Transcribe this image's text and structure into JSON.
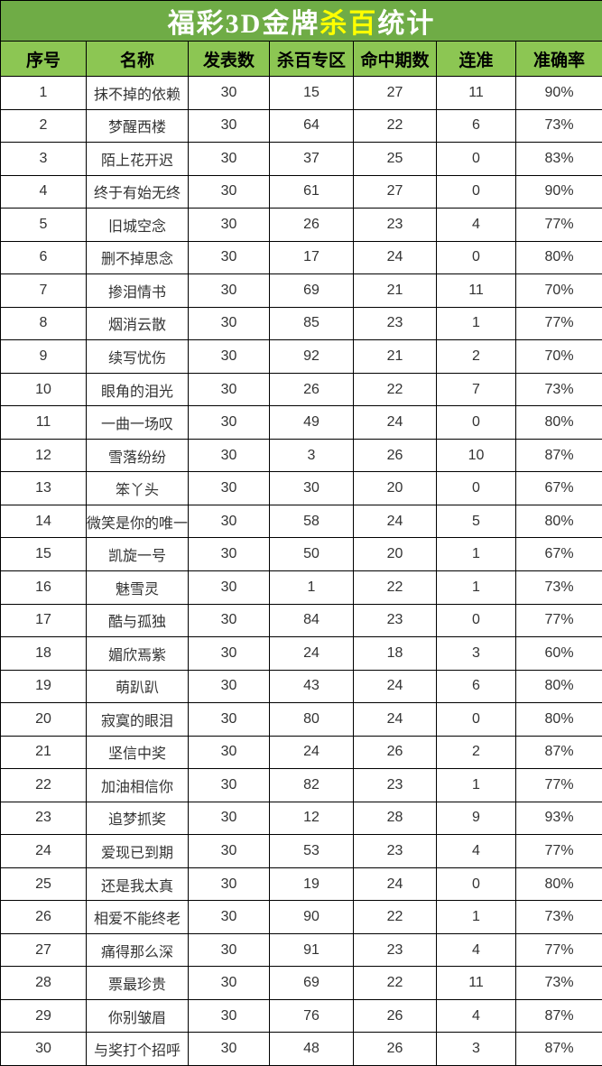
{
  "title": {
    "prefix": "福彩3D金牌",
    "highlight": "杀百",
    "suffix": "统计"
  },
  "colors": {
    "title_bg": "#6FAC46",
    "header_bg": "#8CC653",
    "title_text": "#FFFFFF",
    "title_highlight": "#FFFF00",
    "border": "#000000",
    "cell_text": "#333333"
  },
  "chart_data": {
    "type": "table",
    "title": "福彩3D金牌杀百统计",
    "columns": [
      "序号",
      "名称",
      "发表数",
      "杀百专区",
      "命中期数",
      "连准",
      "准确率"
    ],
    "rows": [
      [
        1,
        "抹不掉的依赖",
        30,
        15,
        27,
        11,
        "90%"
      ],
      [
        2,
        "梦醒西楼",
        30,
        64,
        22,
        6,
        "73%"
      ],
      [
        3,
        "陌上花开迟",
        30,
        37,
        25,
        0,
        "83%"
      ],
      [
        4,
        "终于有始无终",
        30,
        61,
        27,
        0,
        "90%"
      ],
      [
        5,
        "旧城空念",
        30,
        26,
        23,
        4,
        "77%"
      ],
      [
        6,
        "删不掉思念",
        30,
        17,
        24,
        0,
        "80%"
      ],
      [
        7,
        "掺泪情书",
        30,
        69,
        21,
        11,
        "70%"
      ],
      [
        8,
        "烟消云散",
        30,
        85,
        23,
        1,
        "77%"
      ],
      [
        9,
        "续写忧伤",
        30,
        92,
        21,
        2,
        "70%"
      ],
      [
        10,
        "眼角的泪光",
        30,
        26,
        22,
        7,
        "73%"
      ],
      [
        11,
        "一曲一场叹",
        30,
        49,
        24,
        0,
        "80%"
      ],
      [
        12,
        "雪落纷纷",
        30,
        3,
        26,
        10,
        "87%"
      ],
      [
        13,
        "笨丫头",
        30,
        30,
        20,
        0,
        "67%"
      ],
      [
        14,
        "微笑是你的唯一",
        30,
        58,
        24,
        5,
        "80%"
      ],
      [
        15,
        "凯旋一号",
        30,
        50,
        20,
        1,
        "67%"
      ],
      [
        16,
        "魅雪灵",
        30,
        1,
        22,
        1,
        "73%"
      ],
      [
        17,
        "酷与孤独",
        30,
        84,
        23,
        0,
        "77%"
      ],
      [
        18,
        "媚欣焉紫",
        30,
        24,
        18,
        3,
        "60%"
      ],
      [
        19,
        "萌趴趴",
        30,
        43,
        24,
        6,
        "80%"
      ],
      [
        20,
        "寂寞的眼泪",
        30,
        80,
        24,
        0,
        "80%"
      ],
      [
        21,
        "坚信中奖",
        30,
        24,
        26,
        2,
        "87%"
      ],
      [
        22,
        "加油相信你",
        30,
        82,
        23,
        1,
        "77%"
      ],
      [
        23,
        "追梦抓奖",
        30,
        12,
        28,
        9,
        "93%"
      ],
      [
        24,
        "爱现已到期",
        30,
        53,
        23,
        4,
        "77%"
      ],
      [
        25,
        "还是我太真",
        30,
        19,
        24,
        0,
        "80%"
      ],
      [
        26,
        "相爱不能终老",
        30,
        90,
        22,
        1,
        "73%"
      ],
      [
        27,
        "痛得那么深",
        30,
        91,
        23,
        4,
        "77%"
      ],
      [
        28,
        "票最珍贵",
        30,
        69,
        22,
        11,
        "73%"
      ],
      [
        29,
        "你别皱眉",
        30,
        76,
        26,
        4,
        "87%"
      ],
      [
        30,
        "与奖打个招呼",
        30,
        48,
        26,
        3,
        "87%"
      ]
    ]
  }
}
